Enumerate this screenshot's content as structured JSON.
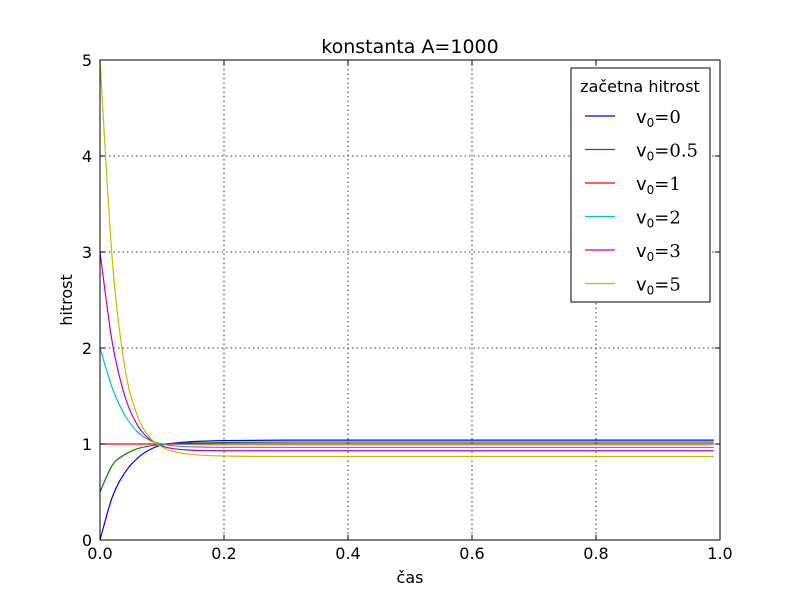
{
  "chart_data": {
    "type": "line",
    "title": "konstanta A=1000",
    "xlabel": "čas",
    "ylabel": "hitrost",
    "xlim": [
      0,
      1
    ],
    "ylim": [
      0,
      5
    ],
    "x_ticks": [
      "0.0",
      "0.2",
      "0.4",
      "0.6",
      "0.8",
      "1.0"
    ],
    "y_ticks": [
      "0",
      "1",
      "2",
      "3",
      "4",
      "5"
    ],
    "grid": true,
    "legend": {
      "title": "začetna hitrost",
      "placement": "top-right"
    },
    "x": [
      0.0,
      0.02,
      0.04,
      0.06,
      0.08,
      0.1,
      0.12,
      0.15,
      0.2,
      0.3,
      0.5,
      0.75,
      0.99
    ],
    "series": [
      {
        "name": "v₀ = 0",
        "label_main": "v",
        "label_sub": "0",
        "label_eq": "=0",
        "color": "#0000ff",
        "values": [
          0.0,
          0.45,
          0.7,
          0.85,
          0.94,
          0.99,
          1.01,
          1.025,
          1.035,
          1.04,
          1.04,
          1.04,
          1.04
        ]
      },
      {
        "name": "v₀ = 0.5",
        "label_main": "v",
        "label_sub": "0",
        "label_eq": "=0.5",
        "color": "#008000",
        "values": [
          0.5,
          0.78,
          0.89,
          0.95,
          0.98,
          0.995,
          1.005,
          1.01,
          1.015,
          1.02,
          1.02,
          1.02,
          1.02
        ]
      },
      {
        "name": "v₀ = 1",
        "label_main": "v",
        "label_sub": "0",
        "label_eq": "=1",
        "color": "#ff0000",
        "values": [
          1.0,
          1.0,
          1.0,
          1.0,
          1.0,
          1.0,
          1.0,
          1.0,
          1.0,
          1.0,
          1.0,
          1.0,
          1.0
        ]
      },
      {
        "name": "v₀ = 2",
        "label_main": "v",
        "label_sub": "0",
        "label_eq": "=2",
        "color": "#00bfbf",
        "values": [
          2.0,
          1.58,
          1.3,
          1.13,
          1.04,
          1.0,
          0.98,
          0.97,
          0.965,
          0.965,
          0.965,
          0.965,
          0.965
        ]
      },
      {
        "name": "v₀ = 3",
        "label_main": "v",
        "label_sub": "0",
        "label_eq": "=3",
        "color": "#bf00bf",
        "values": [
          3.0,
          2.05,
          1.5,
          1.2,
          1.05,
          0.98,
          0.95,
          0.935,
          0.93,
          0.93,
          0.93,
          0.93,
          0.93
        ]
      },
      {
        "name": "v₀ = 5",
        "label_main": "v",
        "label_sub": "0",
        "label_eq": "=5",
        "color": "#bfbf00",
        "values": [
          5.0,
          2.9,
          1.8,
          1.3,
          1.07,
          0.97,
          0.92,
          0.89,
          0.875,
          0.87,
          0.87,
          0.87,
          0.87
        ]
      }
    ]
  }
}
